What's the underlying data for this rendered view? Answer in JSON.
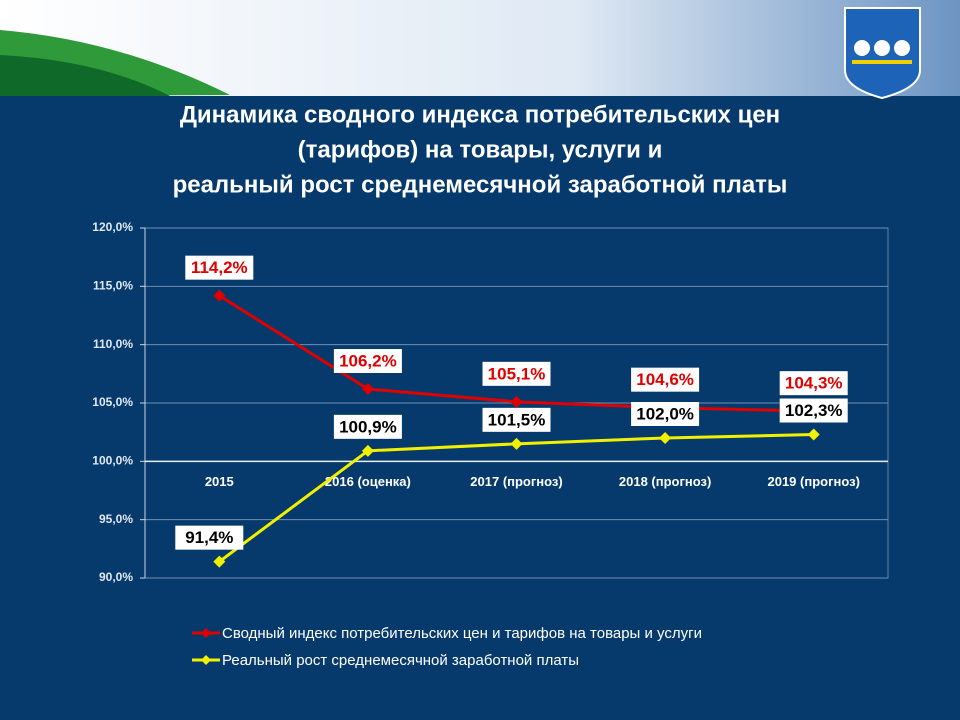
{
  "chart_data": {
    "type": "line",
    "title": [
      "Динамика сводного индекса потребительских цен",
      "(тарифов) на товары, услуги и",
      "реальный рост среднемесячной заработной платы"
    ],
    "categories": [
      "2015",
      "2016 (оценка)",
      "2017 (прогноз)",
      "2018 (прогноз)",
      "2019 (прогноз)"
    ],
    "series": [
      {
        "name": "Сводный индекс  потребительских  цен и тарифов на товары и услуги",
        "color": "#e00000",
        "values": [
          114.2,
          106.2,
          105.1,
          104.6,
          104.3
        ],
        "value_labels": [
          "114,2%",
          "106,2%",
          "105,1%",
          "104,6%",
          "104,3%"
        ]
      },
      {
        "name": "Реальный  рост  среднемесячной  заработной платы",
        "color": "#f0f000",
        "values": [
          91.4,
          100.9,
          101.5,
          102.0,
          102.3
        ],
        "value_labels": [
          "91,4%",
          "100,9%",
          "101,5%",
          "102,0%",
          "102,3%"
        ]
      }
    ],
    "ylim": [
      90,
      120
    ],
    "yticks": [
      {
        "value": 90,
        "label": "90,0%"
      },
      {
        "value": 95,
        "label": "95,0%"
      },
      {
        "value": 100,
        "label": "100,0%"
      },
      {
        "value": 105,
        "label": "105,0%"
      },
      {
        "value": 110,
        "label": "110,0%"
      },
      {
        "value": 115,
        "label": "115,0%"
      },
      {
        "value": 120,
        "label": "120,0%"
      }
    ],
    "grid": true
  }
}
